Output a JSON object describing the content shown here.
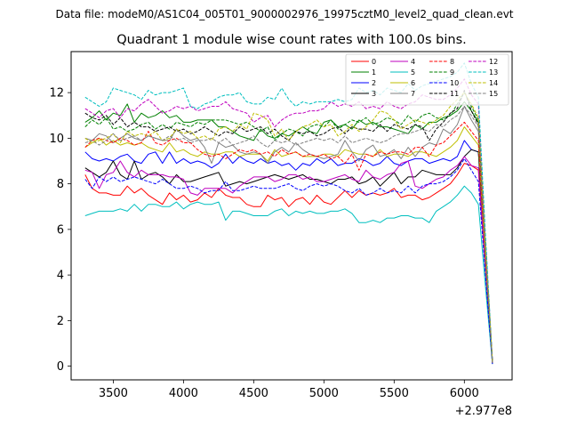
{
  "figure": {
    "suptitle": "Data file: modeM0/AS1C04_005T01_9000002976_19975cztM0_level2_quad_clean.evt"
  },
  "chart_data": {
    "type": "line",
    "title": "Quadrant 1 module wise count rates with 100.0s bins.",
    "xlabel": "",
    "ylabel": "",
    "x_offset_label": "+2.977e8",
    "xlim": [
      3200,
      6340
    ],
    "ylim": [
      -0.6,
      13.8
    ],
    "xticks": [
      3500,
      4000,
      4500,
      5000,
      5500,
      6000
    ],
    "yticks": [
      0,
      2,
      4,
      6,
      8,
      10,
      12
    ],
    "grid": false,
    "legend_placement": "top-right",
    "legend_columns": 4,
    "x": [
      3300,
      3350,
      3400,
      3450,
      3500,
      3550,
      3600,
      3650,
      3700,
      3750,
      3800,
      3850,
      3900,
      3950,
      4000,
      4050,
      4100,
      4150,
      4200,
      4250,
      4300,
      4350,
      4400,
      4450,
      4500,
      4550,
      4600,
      4650,
      4700,
      4750,
      4800,
      4850,
      4900,
      4950,
      5000,
      5050,
      5100,
      5150,
      5200,
      5250,
      5300,
      5350,
      5400,
      5450,
      5500,
      5550,
      5600,
      5650,
      5700,
      5750,
      5800,
      5850,
      5900,
      5950,
      6000,
      6050,
      6100,
      6150,
      6200
    ],
    "series": [
      {
        "name": "0",
        "color": "#ff0000",
        "dash": "solid",
        "values": [
          8.4,
          7.8,
          7.6,
          7.6,
          7.5,
          7.5,
          7.9,
          7.6,
          7.8,
          7.5,
          7.3,
          7.1,
          7.6,
          7.3,
          7.5,
          7.2,
          7.3,
          7.6,
          7.4,
          7.8,
          7.5,
          7.4,
          7.4,
          7.1,
          7.0,
          7.0,
          7.5,
          7.3,
          7.4,
          7.0,
          7.3,
          7.4,
          7.1,
          7.5,
          7.2,
          7.1,
          7.4,
          7.7,
          7.4,
          7.7,
          7.5,
          7.6,
          7.5,
          7.6,
          7.8,
          7.4,
          7.5,
          7.5,
          7.3,
          7.4,
          7.6,
          7.8,
          8.0,
          8.4,
          8.9,
          8.8,
          8.6,
          4.2,
          0.15
        ]
      },
      {
        "name": "1",
        "color": "#008000",
        "dash": "solid",
        "values": [
          10.7,
          10.9,
          11.2,
          10.8,
          11.1,
          11.0,
          11.5,
          10.7,
          11.1,
          10.9,
          11.0,
          11.2,
          10.9,
          11.0,
          10.7,
          10.7,
          10.8,
          10.8,
          10.8,
          10.5,
          10.5,
          10.3,
          10.1,
          10.0,
          9.9,
          10.4,
          10.1,
          10.0,
          10.2,
          10.1,
          10.3,
          10.5,
          10.3,
          10.2,
          10.7,
          10.8,
          10.5,
          10.6,
          10.4,
          10.8,
          10.6,
          10.7,
          10.5,
          10.5,
          10.4,
          10.3,
          10.2,
          10.6,
          10.4,
          10.7,
          10.7,
          10.9,
          11.0,
          11.2,
          11.6,
          11.2,
          10.7,
          5.0,
          0.2
        ]
      },
      {
        "name": "2",
        "color": "#0000ff",
        "dash": "solid",
        "values": [
          9.4,
          9.1,
          9.0,
          9.1,
          9.0,
          9.2,
          9.3,
          9.0,
          8.9,
          9.3,
          9.4,
          8.9,
          9.4,
          8.9,
          9.1,
          8.9,
          9.0,
          8.9,
          8.7,
          8.9,
          9.3,
          8.9,
          9.2,
          9.0,
          8.9,
          9.1,
          8.9,
          9.0,
          8.8,
          8.9,
          8.6,
          8.9,
          8.8,
          9.1,
          8.9,
          9.1,
          8.8,
          8.9,
          8.9,
          9.1,
          9.0,
          8.8,
          8.9,
          9.2,
          8.9,
          8.8,
          9.0,
          9.1,
          9.1,
          8.9,
          9.0,
          9.1,
          9.0,
          9.2,
          9.9,
          9.5,
          9.4,
          4.5,
          0.15
        ]
      },
      {
        "name": "3",
        "color": "#000000",
        "dash": "solid",
        "values": [
          8.7,
          8.5,
          8.3,
          8.5,
          9.0,
          8.4,
          8.2,
          9.0,
          8.2,
          8.4,
          8.5,
          8.3,
          8.0,
          8.4,
          8.1,
          8.1,
          8.2,
          8.3,
          8.4,
          8.5,
          7.9,
          8.0,
          8.1,
          8.0,
          8.1,
          8.2,
          8.3,
          8.4,
          8.3,
          8.2,
          8.3,
          8.4,
          8.2,
          8.2,
          8.1,
          8.0,
          8.2,
          8.2,
          8.3,
          8.0,
          8.1,
          8.3,
          7.9,
          8.2,
          8.5,
          8.0,
          8.3,
          8.3,
          8.6,
          8.5,
          8.4,
          8.4,
          8.4,
          8.7,
          9.2,
          9.5,
          9.4,
          4.4,
          0.1
        ]
      },
      {
        "name": "4",
        "color": "#bf00bf",
        "dash": "solid",
        "values": [
          8.6,
          8.5,
          7.8,
          8.4,
          8.5,
          9.0,
          8.5,
          8.3,
          8.6,
          8.4,
          8.4,
          8.4,
          8.3,
          8.3,
          8.2,
          7.6,
          7.5,
          7.8,
          7.8,
          7.8,
          7.8,
          7.6,
          7.9,
          8.1,
          8.3,
          8.3,
          8.3,
          8.1,
          8.2,
          8.4,
          8.4,
          8.2,
          8.3,
          8.1,
          8.1,
          8.2,
          8.3,
          8.4,
          8.2,
          8.1,
          8.6,
          8.3,
          8.2,
          8.4,
          8.5,
          8.9,
          9.0,
          7.9,
          7.8,
          8.0,
          8.2,
          8.3,
          8.6,
          8.8,
          9.2,
          8.8,
          8.7,
          4.4,
          0.15
        ]
      },
      {
        "name": "5",
        "color": "#00bfbf",
        "dash": "solid",
        "values": [
          6.6,
          6.7,
          6.8,
          6.8,
          6.8,
          6.9,
          6.8,
          7.1,
          6.8,
          7.1,
          7.1,
          7.0,
          7.0,
          7.2,
          6.9,
          7.1,
          7.2,
          7.1,
          7.1,
          7.2,
          6.4,
          6.8,
          6.8,
          6.7,
          6.6,
          6.6,
          6.6,
          6.8,
          6.9,
          6.6,
          6.8,
          6.7,
          6.8,
          6.7,
          6.7,
          6.8,
          6.8,
          6.9,
          6.7,
          6.3,
          6.3,
          6.4,
          6.3,
          6.5,
          6.5,
          6.6,
          6.6,
          6.5,
          6.5,
          6.3,
          6.8,
          7.0,
          7.2,
          7.5,
          7.9,
          7.6,
          7.1,
          3.5,
          0.1
        ]
      },
      {
        "name": "6",
        "color": "#bfbf00",
        "dash": "solid",
        "values": [
          9.6,
          9.8,
          10.0,
          9.7,
          9.9,
          9.7,
          9.8,
          9.7,
          9.8,
          9.6,
          9.5,
          9.4,
          9.8,
          9.4,
          9.5,
          9.3,
          9.2,
          9.4,
          9.3,
          9.3,
          9.4,
          9.4,
          9.2,
          9.3,
          9.3,
          9.3,
          9.0,
          9.5,
          9.2,
          9.3,
          9.4,
          9.2,
          9.2,
          9.2,
          9.3,
          9.3,
          9.2,
          9.5,
          9.4,
          9.3,
          9.3,
          9.2,
          9.5,
          9.2,
          9.3,
          9.3,
          9.2,
          9.4,
          9.4,
          9.3,
          9.2,
          9.4,
          9.6,
          9.9,
          10.5,
          10.1,
          9.7,
          4.7,
          0.15
        ]
      },
      {
        "name": "7",
        "color": "#808080",
        "dash": "solid",
        "values": [
          10.0,
          9.9,
          10.2,
          10.1,
          9.8,
          10.0,
          10.2,
          10.0,
          9.9,
          10.1,
          10.0,
          9.9,
          9.9,
          10.4,
          10.1,
          9.9,
          10.0,
          9.6,
          8.9,
          9.8,
          9.6,
          9.7,
          9.4,
          9.3,
          9.4,
          9.3,
          8.9,
          9.4,
          9.6,
          9.4,
          9.8,
          9.5,
          9.3,
          9.2,
          9.1,
          9.2,
          9.3,
          9.9,
          9.4,
          9.0,
          9.5,
          9.7,
          9.2,
          9.3,
          9.5,
          9.1,
          9.6,
          9.2,
          9.6,
          9.8,
          9.7,
          10.4,
          10.2,
          10.6,
          11.4,
          10.8,
          10.3,
          5.0,
          0.2
        ]
      },
      {
        "name": "8",
        "color": "#ff0000",
        "dash": "dashed",
        "values": [
          9.6,
          9.9,
          10.0,
          9.9,
          9.8,
          10.0,
          9.9,
          9.7,
          9.8,
          10.3,
          9.8,
          9.7,
          9.9,
          10.0,
          9.8,
          9.8,
          9.5,
          9.3,
          9.2,
          9.3,
          9.1,
          9.3,
          9.5,
          9.4,
          9.5,
          9.3,
          9.4,
          9.2,
          9.5,
          9.3,
          9.4,
          9.2,
          9.3,
          9.2,
          9.3,
          9.1,
          9.2,
          8.9,
          9.3,
          8.6,
          9.3,
          9.2,
          9.4,
          9.3,
          9.4,
          9.4,
          9.3,
          9.6,
          9.6,
          9.2,
          9.7,
          9.8,
          10.1,
          10.4,
          10.7,
          10.3,
          9.9,
          4.9,
          0.15
        ]
      },
      {
        "name": "9",
        "color": "#008000",
        "dash": "dashed",
        "values": [
          10.5,
          10.8,
          10.6,
          10.9,
          10.4,
          10.5,
          10.3,
          10.4,
          10.6,
          10.7,
          10.4,
          10.6,
          10.4,
          10.7,
          10.6,
          10.5,
          10.7,
          10.6,
          10.8,
          10.8,
          10.8,
          10.7,
          10.6,
          10.7,
          10.5,
          10.3,
          10.5,
          9.9,
          10.2,
          10.4,
          10.3,
          10.1,
          10.5,
          10.6,
          10.5,
          10.8,
          10.4,
          10.6,
          10.8,
          10.7,
          10.9,
          10.6,
          10.7,
          10.9,
          10.8,
          10.6,
          11.0,
          10.7,
          11.0,
          11.1,
          10.9,
          10.8,
          11.0,
          11.5,
          12.0,
          11.4,
          10.8,
          5.3,
          0.2
        ]
      },
      {
        "name": "10",
        "color": "#0000ff",
        "dash": "dashed",
        "values": [
          8.2,
          7.8,
          8.3,
          8.1,
          8.3,
          8.1,
          8.2,
          8.3,
          8.2,
          8.1,
          8.0,
          8.2,
          8.0,
          7.8,
          7.8,
          7.9,
          7.8,
          7.6,
          7.7,
          7.7,
          8.1,
          7.7,
          7.7,
          7.8,
          7.9,
          7.8,
          7.8,
          7.8,
          7.9,
          8.0,
          7.8,
          7.7,
          7.9,
          8.0,
          7.9,
          8.0,
          7.9,
          7.7,
          7.6,
          7.8,
          7.5,
          7.6,
          7.8,
          7.6,
          7.7,
          7.6,
          7.9,
          7.6,
          7.9,
          8.0,
          8.0,
          8.1,
          8.3,
          8.6,
          9.1,
          8.6,
          8.1,
          4.0,
          0.1
        ]
      },
      {
        "name": "11",
        "color": "#000000",
        "dash": "dashed",
        "values": [
          11.1,
          10.9,
          10.8,
          11.0,
          10.6,
          10.9,
          10.5,
          10.7,
          10.5,
          10.5,
          10.3,
          10.4,
          10.5,
          10.3,
          10.4,
          10.2,
          10.3,
          10.5,
          10.3,
          10.1,
          10.3,
          10.2,
          10.5,
          10.3,
          10.4,
          10.5,
          10.2,
          10.4,
          10.1,
          9.9,
          10.3,
          10.2,
          10.3,
          10.1,
          10.2,
          10.4,
          10.5,
          10.2,
          10.5,
          10.4,
          10.4,
          10.3,
          10.6,
          10.3,
          10.6,
          10.5,
          10.4,
          10.6,
          10.5,
          9.9,
          10.4,
          10.7,
          11.1,
          11.3,
          12.1,
          11.2,
          10.6,
          5.2,
          0.2
        ]
      },
      {
        "name": "12",
        "color": "#bf00bf",
        "dash": "dashed",
        "values": [
          11.3,
          11.1,
          10.9,
          11.2,
          11.3,
          10.9,
          11.3,
          11.2,
          11.5,
          11.7,
          11.4,
          11.1,
          11.2,
          11.4,
          11.3,
          11.4,
          11.2,
          11.3,
          11.4,
          11.4,
          11.6,
          11.3,
          11.2,
          11.1,
          10.7,
          10.9,
          11.0,
          10.5,
          10.8,
          11.0,
          11.1,
          11.1,
          11.2,
          11.2,
          11.3,
          11.6,
          11.4,
          11.5,
          11.4,
          11.6,
          11.3,
          11.4,
          11.3,
          11.6,
          11.4,
          11.3,
          11.5,
          11.6,
          11.9,
          11.8,
          11.7,
          11.7,
          11.9,
          12.2,
          12.6,
          11.9,
          11.5,
          5.6,
          0.2
        ]
      },
      {
        "name": "13",
        "color": "#00bfbf",
        "dash": "dashed",
        "values": [
          11.8,
          11.6,
          11.4,
          11.6,
          12.2,
          12.1,
          12.0,
          11.9,
          11.7,
          12.1,
          11.9,
          12.0,
          12.0,
          12.1,
          12.2,
          11.4,
          11.3,
          11.5,
          11.6,
          11.8,
          11.9,
          11.9,
          12.0,
          11.6,
          11.5,
          11.5,
          11.8,
          11.7,
          12.2,
          11.7,
          11.4,
          11.6,
          11.5,
          11.6,
          11.6,
          11.6,
          11.7,
          11.6,
          11.7,
          12.2,
          12.0,
          12.1,
          11.9,
          12.2,
          12.1,
          12.0,
          12.4,
          12.1,
          12.3,
          12.4,
          12.5,
          12.6,
          12.7,
          12.9,
          13.3,
          12.4,
          11.8,
          5.8,
          0.2
        ]
      },
      {
        "name": "14",
        "color": "#bfbf00",
        "dash": "dashed",
        "values": [
          10.0,
          9.8,
          9.9,
          10.0,
          10.2,
          9.8,
          10.3,
          10.1,
          10.2,
          10.1,
          10.3,
          9.9,
          10.0,
          10.4,
          10.2,
          10.3,
          10.0,
          10.1,
          9.9,
          10.4,
          10.5,
          10.3,
          10.6,
          10.4,
          11.1,
          11.0,
          10.8,
          10.1,
          10.4,
          9.9,
          10.3,
          10.5,
          10.6,
          10.8,
          10.5,
          10.6,
          10.1,
          10.3,
          10.6,
          10.3,
          10.5,
          10.8,
          11.2,
          11.1,
          10.8,
          10.4,
          10.6,
          10.8,
          10.7,
          10.6,
          10.8,
          11.0,
          11.4,
          11.7,
          12.0,
          11.5,
          10.9,
          5.3,
          0.2
        ]
      },
      {
        "name": "15",
        "color": "#808080",
        "dash": "dashed",
        "values": [
          9.8,
          9.9,
          9.7,
          9.9,
          10.2,
          9.9,
          10.0,
          10.1,
          9.9,
          10.1,
          10.0,
          9.9,
          10.1,
          9.9,
          10.0,
          9.8,
          9.9,
          9.9,
          10.0,
          9.8,
          10.0,
          9.7,
          9.8,
          9.9,
          10.1,
          9.8,
          9.6,
          9.9,
          9.8,
          9.9,
          9.7,
          9.8,
          9.9,
          10.0,
          9.9,
          10.0,
          9.8,
          10.1,
          9.8,
          9.9,
          10.0,
          9.9,
          9.8,
          9.9,
          10.1,
          10.2,
          10.2,
          10.3,
          10.4,
          10.3,
          10.6,
          10.5,
          10.8,
          11.0,
          11.4,
          11.0,
          10.5,
          5.1,
          0.15
        ]
      }
    ]
  }
}
